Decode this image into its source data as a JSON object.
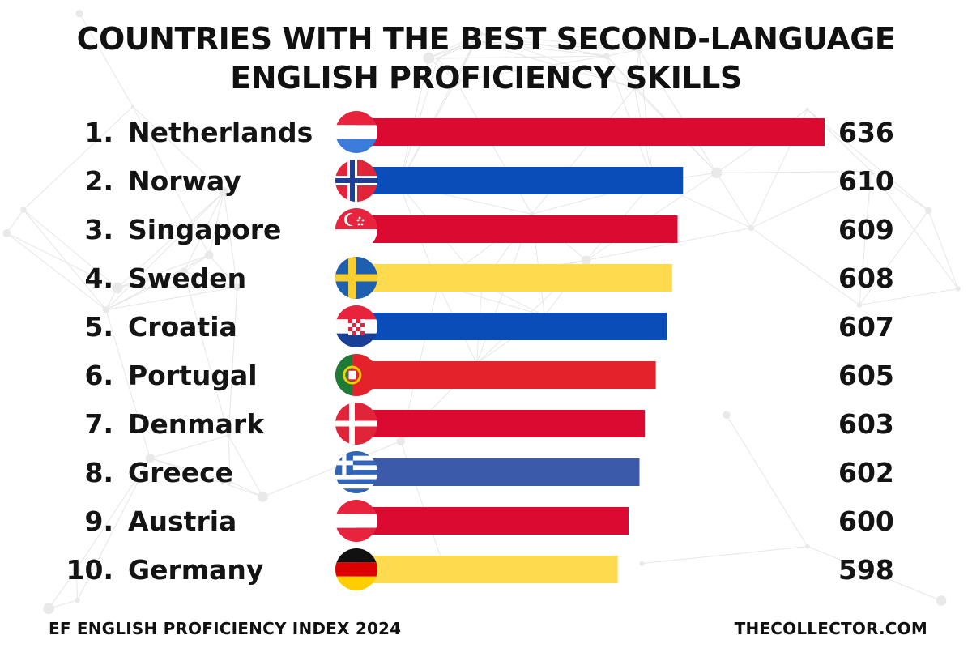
{
  "title_lines": [
    "COUNTRIES WITH THE BEST SECOND-LANGUAGE",
    "ENGLISH PROFICIENCY SKILLS"
  ],
  "footer": {
    "source": "EF ENGLISH PROFICIENCY INDEX 2024",
    "site": "THECOLLECTOR.COM"
  },
  "colors": {
    "red": "#DA0A30",
    "blue": "#0A4DB8",
    "yellow": "#FDDA4E",
    "portugal_red": "#E3222B",
    "greece_blue": "#3B5BAA"
  },
  "chart_data": {
    "type": "bar",
    "orientation": "horizontal",
    "title": "COUNTRIES WITH THE BEST SECOND-LANGUAGE ENGLISH PROFICIENCY SKILLS",
    "xlabel": "",
    "ylabel": "",
    "xlim": [
      550,
      636
    ],
    "grid": false,
    "legend": "none",
    "items": [
      {
        "rank": "1.",
        "country": "Netherlands",
        "value": 636,
        "color": "#DA0A30",
        "flag": "netherlands-flag"
      },
      {
        "rank": "2.",
        "country": "Norway",
        "value": 610,
        "color": "#0A4DB8",
        "flag": "norway-flag"
      },
      {
        "rank": "3.",
        "country": "Singapore",
        "value": 609,
        "color": "#DA0A30",
        "flag": "singapore-flag"
      },
      {
        "rank": "4.",
        "country": "Sweden",
        "value": 608,
        "color": "#FDDA4E",
        "flag": "sweden-flag"
      },
      {
        "rank": "5.",
        "country": "Croatia",
        "value": 607,
        "color": "#0A4DB8",
        "flag": "croatia-flag"
      },
      {
        "rank": "6.",
        "country": "Portugal",
        "value": 605,
        "color": "#E3222B",
        "flag": "portugal-flag"
      },
      {
        "rank": "7.",
        "country": "Denmark",
        "value": 603,
        "color": "#DA0A30",
        "flag": "denmark-flag"
      },
      {
        "rank": "8.",
        "country": "Greece",
        "value": 602,
        "color": "#3B5BAA",
        "flag": "greece-flag"
      },
      {
        "rank": "9.",
        "country": "Austria",
        "value": 600,
        "color": "#DA0A30",
        "flag": "austria-flag"
      },
      {
        "rank": "10.",
        "country": "Germany",
        "value": 598,
        "color": "#FDDA4E",
        "flag": "germany-flag"
      }
    ]
  }
}
